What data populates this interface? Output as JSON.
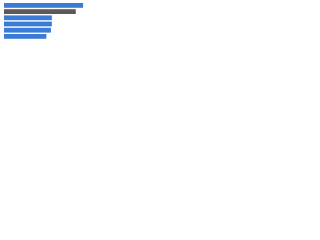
{
  "chart_data": {
    "type": "bar",
    "orientation": "horizontal",
    "categories": [
      null,
      null,
      null,
      null,
      null,
      null
    ],
    "values": [
      86,
      78,
      52,
      52,
      51,
      46
    ],
    "colors": [
      "#3a7bd5",
      "#5a5a5a",
      "#3a7bd5",
      "#3a7bd5",
      "#3a7bd5",
      "#3a7bd5"
    ],
    "xlim": [
      0,
      100
    ]
  }
}
